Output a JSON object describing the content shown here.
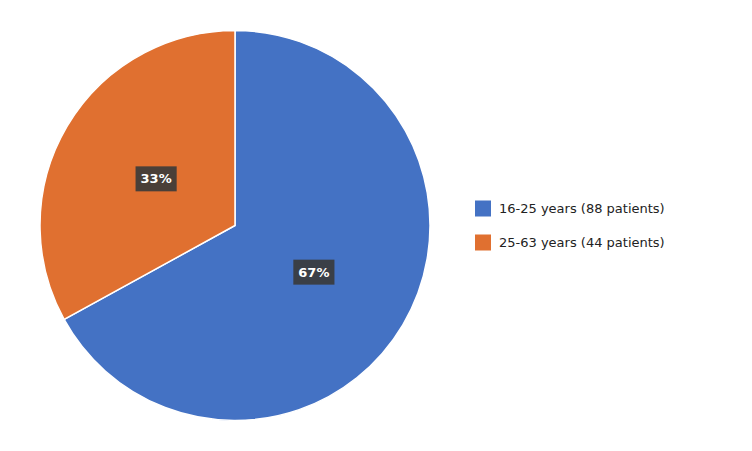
{
  "chart_data": {
    "type": "pie",
    "categories": [
      "16-25 years (88 patients)",
      "25-63 years (44 patients)"
    ],
    "values": [
      67,
      33
    ],
    "value_labels": [
      "67%",
      "33%"
    ],
    "colors": [
      "#4472C4",
      "#E07030"
    ],
    "data_labels": true,
    "legend": "right"
  }
}
